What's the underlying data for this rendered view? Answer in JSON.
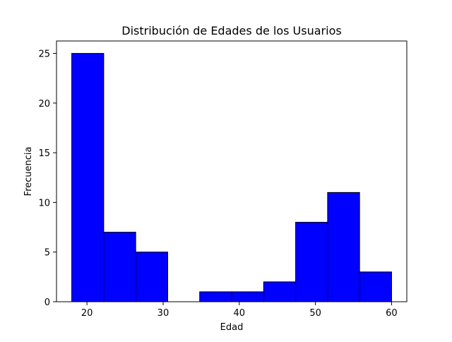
{
  "chart_data": {
    "type": "bar",
    "title": "Distribución de Edades de los Usuarios",
    "xlabel": "Edad",
    "ylabel": "Frecuencia",
    "histogram": true,
    "bin_edges": [
      18,
      22.2,
      26.4,
      30.6,
      34.8,
      39,
      43.2,
      47.4,
      51.6,
      55.8,
      60
    ],
    "values": [
      25,
      7,
      5,
      0,
      1,
      1,
      2,
      8,
      11,
      3
    ],
    "xlim": [
      16,
      62
    ],
    "ylim": [
      0,
      26.25
    ],
    "xticks": [
      20,
      30,
      40,
      50,
      60
    ],
    "yticks": [
      0,
      5,
      10,
      15,
      20,
      25
    ],
    "grid": false,
    "colors": {
      "bar_fill": "#0000ff",
      "bar_edge": "#000000"
    }
  }
}
